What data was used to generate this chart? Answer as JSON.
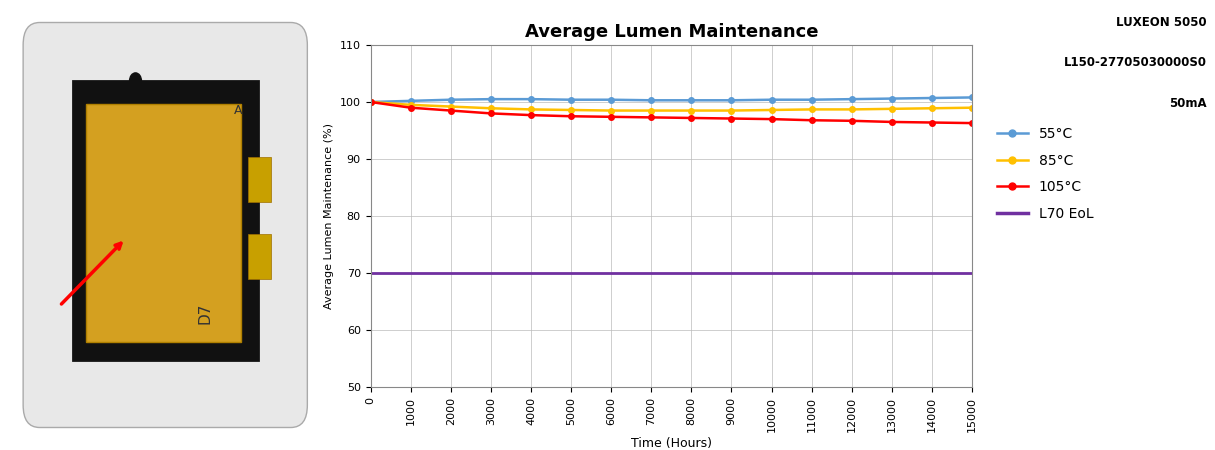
{
  "title": "Average Lumen Maintenance",
  "subtitle_line1": "LUXEON 5050",
  "subtitle_line2": "L150-27705030000S0",
  "subtitle_line3": "50mA",
  "xlabel": "Time (Hours)",
  "ylabel": "Average Lumen Maintenance (%)",
  "xlim": [
    0,
    15000
  ],
  "ylim": [
    50,
    110
  ],
  "yticks": [
    50,
    60,
    70,
    80,
    90,
    100,
    110
  ],
  "xticks": [
    0,
    1000,
    2000,
    3000,
    4000,
    5000,
    6000,
    7000,
    8000,
    9000,
    10000,
    11000,
    12000,
    13000,
    14000,
    15000
  ],
  "series": [
    {
      "label": "55°C",
      "color": "#5B9BD5",
      "data_x": [
        0,
        1000,
        2000,
        3000,
        4000,
        5000,
        6000,
        7000,
        8000,
        9000,
        10000,
        11000,
        12000,
        13000,
        14000,
        15000
      ],
      "data_y": [
        100.0,
        100.2,
        100.4,
        100.5,
        100.5,
        100.4,
        100.4,
        100.3,
        100.3,
        100.3,
        100.4,
        100.4,
        100.5,
        100.6,
        100.7,
        100.8
      ]
    },
    {
      "label": "85°C",
      "color": "#FFC000",
      "data_x": [
        0,
        1000,
        2000,
        3000,
        4000,
        5000,
        6000,
        7000,
        8000,
        9000,
        10000,
        11000,
        12000,
        13000,
        14000,
        15000
      ],
      "data_y": [
        100.0,
        99.5,
        99.2,
        98.9,
        98.7,
        98.6,
        98.5,
        98.5,
        98.5,
        98.5,
        98.6,
        98.7,
        98.7,
        98.8,
        98.9,
        99.0
      ]
    },
    {
      "label": "105°C",
      "color": "#FF0000",
      "data_x": [
        0,
        1000,
        2000,
        3000,
        4000,
        5000,
        6000,
        7000,
        8000,
        9000,
        10000,
        11000,
        12000,
        13000,
        14000,
        15000
      ],
      "data_y": [
        100.0,
        99.0,
        98.5,
        98.0,
        97.7,
        97.5,
        97.4,
        97.3,
        97.2,
        97.1,
        97.0,
        96.8,
        96.7,
        96.5,
        96.4,
        96.3
      ]
    },
    {
      "label": "L70 EoL",
      "color": "#7030A0",
      "data_x": [
        0,
        15000
      ],
      "data_y": [
        70,
        70
      ],
      "no_marker": true
    }
  ],
  "background_color": "#FFFFFF",
  "grid_color": "#BBBBBB",
  "left_panel_color": "#C8C8C8",
  "led_square_color": "#D4A520",
  "led_border_color": "#1A1A1A"
}
